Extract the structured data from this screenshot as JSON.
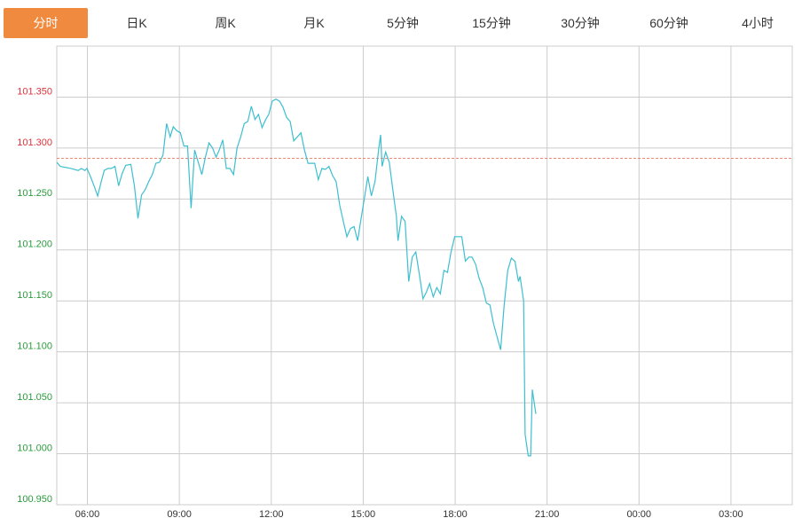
{
  "tabs": [
    "分时",
    "日K",
    "周K",
    "月K",
    "5分钟",
    "15分钟",
    "30分钟",
    "60分钟",
    "4小时"
  ],
  "active_tab": 0,
  "chart_data": {
    "type": "line",
    "color": "#3dbfcf",
    "reference": 101.29,
    "reference_color": "#e8604c",
    "grid": true,
    "xlim": [
      0,
      1440
    ],
    "xticks": [
      {
        "value": 60,
        "label": "06:00"
      },
      {
        "value": 240,
        "label": "09:00"
      },
      {
        "value": 420,
        "label": "12:00"
      },
      {
        "value": 600,
        "label": "15:00"
      },
      {
        "value": 780,
        "label": "18:00"
      },
      {
        "value": 960,
        "label": "21:00"
      },
      {
        "value": 1140,
        "label": "00:00"
      },
      {
        "value": 1320,
        "label": "03:00"
      }
    ],
    "ylim": [
      100.95,
      101.4
    ],
    "yticks": [
      {
        "value": 100.95,
        "label": "100.950"
      },
      {
        "value": 101.0,
        "label": "101.000"
      },
      {
        "value": 101.05,
        "label": "101.050"
      },
      {
        "value": 101.1,
        "label": "101.100"
      },
      {
        "value": 101.15,
        "label": "101.150"
      },
      {
        "value": 101.2,
        "label": "101.200"
      },
      {
        "value": 101.25,
        "label": "101.250"
      },
      {
        "value": 101.3,
        "label": "101.300"
      },
      {
        "value": 101.35,
        "label": "101.350"
      }
    ],
    "x": [
      0,
      7,
      28,
      42,
      48,
      55,
      59,
      66,
      73,
      80,
      87,
      93,
      100,
      107,
      114,
      121,
      128,
      135,
      145,
      152,
      159,
      166,
      173,
      180,
      187,
      194,
      201,
      208,
      215,
      222,
      228,
      235,
      242,
      249,
      256,
      263,
      270,
      277,
      284,
      291,
      298,
      305,
      312,
      318,
      325,
      332,
      339,
      346,
      353,
      360,
      367,
      374,
      381,
      388,
      395,
      402,
      409,
      415,
      422,
      429,
      436,
      443,
      450,
      457,
      464,
      471,
      478,
      485,
      492,
      499,
      505,
      512,
      519,
      526,
      533,
      540,
      547,
      554,
      561,
      568,
      575,
      582,
      589,
      595,
      602,
      609,
      616,
      623,
      630,
      634,
      637,
      644,
      651,
      658,
      665,
      668,
      675,
      682,
      689,
      696,
      703,
      710,
      717,
      724,
      730,
      737,
      744,
      751,
      758,
      765,
      772,
      779,
      786,
      793,
      800,
      807,
      813,
      820,
      827,
      834,
      841,
      848,
      855,
      862,
      869,
      876,
      883,
      890,
      897,
      904,
      907,
      914,
      917,
      923,
      928,
      931,
      938
    ],
    "values": [
      101.286,
      101.282,
      101.28,
      101.278,
      101.28,
      101.278,
      101.28,
      101.272,
      101.263,
      101.253,
      101.267,
      101.278,
      101.28,
      101.28,
      101.282,
      101.263,
      101.275,
      101.283,
      101.284,
      101.263,
      101.231,
      101.254,
      101.259,
      101.267,
      101.274,
      101.285,
      101.286,
      101.293,
      101.324,
      101.311,
      101.321,
      101.317,
      101.315,
      101.302,
      101.302,
      101.241,
      101.298,
      101.286,
      101.274,
      101.291,
      101.305,
      101.3,
      101.291,
      101.298,
      101.308,
      101.28,
      101.28,
      101.274,
      101.3,
      101.311,
      101.324,
      101.326,
      101.341,
      101.328,
      101.333,
      101.32,
      101.328,
      101.333,
      101.346,
      101.348,
      101.346,
      101.34,
      101.33,
      101.326,
      101.307,
      101.311,
      101.315,
      101.298,
      101.285,
      101.285,
      101.285,
      101.269,
      101.28,
      101.279,
      101.282,
      101.273,
      101.267,
      101.244,
      101.228,
      101.213,
      101.221,
      101.223,
      101.209,
      101.228,
      101.25,
      101.272,
      101.253,
      101.267,
      101.298,
      101.313,
      101.282,
      101.296,
      101.286,
      101.259,
      101.233,
      101.209,
      101.233,
      101.228,
      101.169,
      101.193,
      101.198,
      101.176,
      101.152,
      101.159,
      101.167,
      101.154,
      101.163,
      101.157,
      101.18,
      101.178,
      101.198,
      101.213,
      101.213,
      101.213,
      101.189,
      101.193,
      101.193,
      101.186,
      101.172,
      101.163,
      101.148,
      101.146,
      101.128,
      101.115,
      101.102,
      101.146,
      101.18,
      101.192,
      101.189,
      101.169,
      101.174,
      101.15,
      101.019,
      100.998,
      100.998,
      101.063,
      101.039
    ]
  }
}
